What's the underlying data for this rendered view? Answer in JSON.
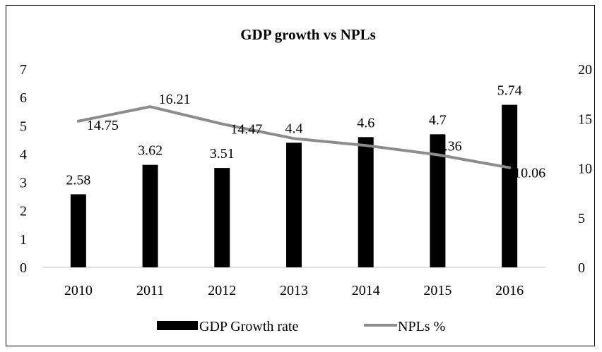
{
  "chart_data": {
    "type": "bar",
    "title": "GDP growth vs NPLs",
    "categories": [
      "2010",
      "2011",
      "2012",
      "2013",
      "2014",
      "2015",
      "2016"
    ],
    "series": [
      {
        "name": "GDP Growth rate",
        "type": "bar",
        "axis": "left",
        "values": [
          2.58,
          3.62,
          3.51,
          4.4,
          4.6,
          4.7,
          5.74
        ],
        "labels": [
          "2.58",
          "3.62",
          "3.51",
          "4.4",
          "4.6",
          "4.7",
          "5.74"
        ],
        "color": "#000000"
      },
      {
        "name": "NPLs %",
        "type": "line",
        "axis": "right",
        "values": [
          14.75,
          16.21,
          14.47,
          13.0,
          12.3,
          11.36,
          10.06
        ],
        "labels": [
          "14.75",
          "16.21",
          "14.47",
          "",
          "",
          "11.36",
          "10.06"
        ],
        "color": "#8c8c8c"
      }
    ],
    "y_left": {
      "ylim": [
        0,
        7
      ],
      "ticks": [
        "0",
        "1",
        "2",
        "3",
        "4",
        "5",
        "6",
        "7"
      ]
    },
    "y_right": {
      "ylim": [
        0,
        20
      ],
      "ticks": [
        "0",
        "5",
        "10",
        "15",
        "20"
      ]
    },
    "xlabel": "",
    "grid": false,
    "legend": "bottom"
  }
}
